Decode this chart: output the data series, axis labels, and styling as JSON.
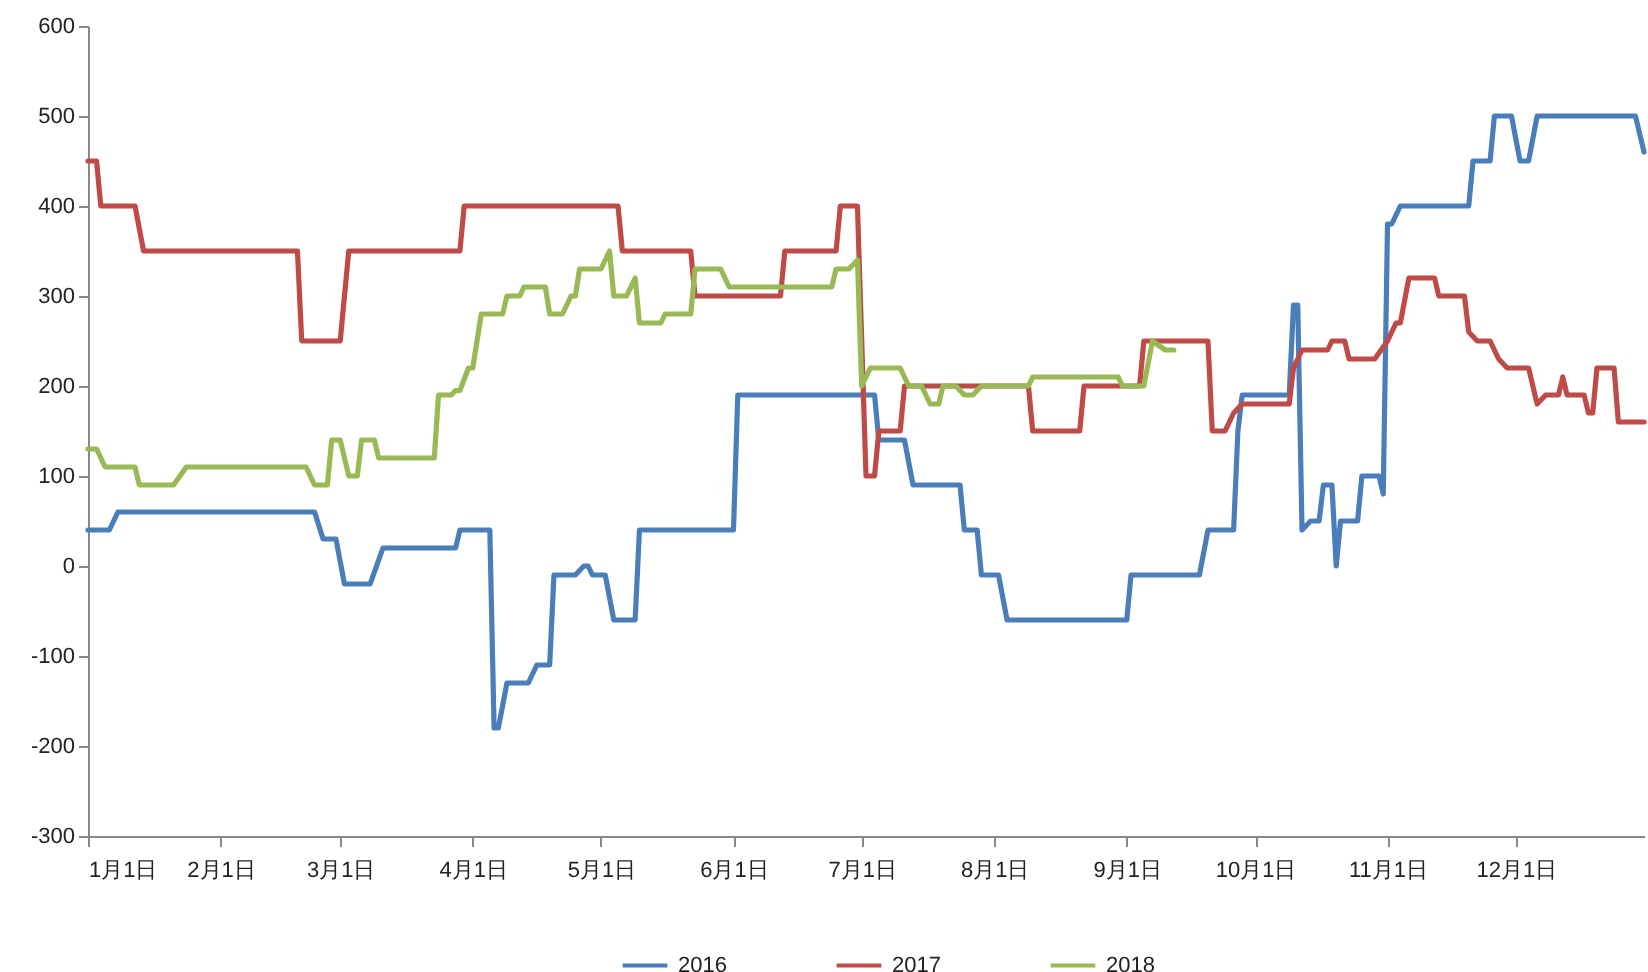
{
  "chart_data": {
    "type": "line",
    "legend": "bottom",
    "line_style": "solid",
    "marker": "none",
    "xlim": [
      "--01-01",
      "--12-31"
    ],
    "xticks": [
      {
        "value": "--01-01",
        "label": "1月1日"
      },
      {
        "value": "--02-01",
        "label": "2月1日"
      },
      {
        "value": "--03-01",
        "label": "3月1日"
      },
      {
        "value": "--04-01",
        "label": "4月1日"
      },
      {
        "value": "--05-01",
        "label": "5月1日"
      },
      {
        "value": "--06-01",
        "label": "6月1日"
      },
      {
        "value": "--07-01",
        "label": "7月1日"
      },
      {
        "value": "--08-01",
        "label": "8月1日"
      },
      {
        "value": "--09-01",
        "label": "9月1日"
      },
      {
        "value": "--10-01",
        "label": "10月1日"
      },
      {
        "value": "--11-01",
        "label": "11月1日"
      },
      {
        "value": "--12-01",
        "label": "12月1日"
      }
    ],
    "ylim": [
      -300,
      600
    ],
    "yticks": [
      -300,
      -200,
      -100,
      0,
      100,
      200,
      300,
      400,
      500,
      600
    ],
    "series": [
      {
        "name": "2016",
        "color": "#4a7ebb",
        "x": [
          "--01-01",
          "--01-06",
          "--01-08",
          "--02-23",
          "--02-25",
          "--02-28",
          "--03-02",
          "--03-08",
          "--03-11",
          "--03-28",
          "--03-29",
          "--04-05",
          "--04-06",
          "--04-07",
          "--04-09",
          "--04-14",
          "--04-16",
          "--04-19",
          "--04-20",
          "--04-25",
          "--04-27",
          "--04-28",
          "--04-29",
          "--05-02",
          "--05-04",
          "--05-09",
          "--05-10",
          "--06-01",
          "--06-02",
          "--07-04",
          "--07-05",
          "--07-11",
          "--07-13",
          "--07-24",
          "--07-25",
          "--07-28",
          "--07-29",
          "--08-02",
          "--08-04",
          "--09-01",
          "--09-02",
          "--09-18",
          "--09-20",
          "--09-26",
          "--09-27",
          "--09-28",
          "--10-09",
          "--10-10",
          "--10-11",
          "--10-12",
          "--10-14",
          "--10-16",
          "--10-17",
          "--10-19",
          "--10-20",
          "--10-21",
          "--10-25",
          "--10-26",
          "--10-30",
          "--10-31",
          "--11-01",
          "--11-02",
          "--11-04",
          "--11-20",
          "--11-21",
          "--11-25",
          "--11-26",
          "--11-30",
          "--12-02",
          "--12-04",
          "--12-06",
          "--12-29",
          "--12-31"
        ],
        "values": [
          40,
          40,
          60,
          60,
          30,
          30,
          -20,
          -20,
          20,
          20,
          40,
          40,
          -180,
          -180,
          -130,
          -130,
          -110,
          -110,
          -10,
          -10,
          0,
          0,
          -10,
          -10,
          -60,
          -60,
          40,
          40,
          190,
          190,
          140,
          140,
          90,
          90,
          40,
          40,
          -10,
          -10,
          -60,
          -60,
          -10,
          -10,
          40,
          40,
          150,
          190,
          190,
          290,
          290,
          40,
          50,
          50,
          90,
          90,
          0,
          50,
          50,
          100,
          100,
          80,
          380,
          380,
          400,
          400,
          450,
          450,
          500,
          500,
          450,
          450,
          500,
          500,
          460
        ]
      },
      {
        "name": "2017",
        "color": "#be4b48",
        "x": [
          "--01-01",
          "--01-03",
          "--01-04",
          "--01-12",
          "--01-14",
          "--02-19",
          "--02-20",
          "--03-01",
          "--03-03",
          "--03-29",
          "--03-30",
          "--05-05",
          "--05-06",
          "--05-22",
          "--05-23",
          "--06-12",
          "--06-13",
          "--06-25",
          "--06-26",
          "--06-30",
          "--07-02",
          "--07-04",
          "--07-05",
          "--07-10",
          "--07-11",
          "--08-09",
          "--08-10",
          "--08-21",
          "--08-22",
          "--09-04",
          "--09-05",
          "--09-20",
          "--09-21",
          "--09-24",
          "--09-26",
          "--09-28",
          "--10-09",
          "--10-10",
          "--10-12",
          "--10-18",
          "--10-19",
          "--10-22",
          "--10-23",
          "--10-29",
          "--11-01",
          "--11-03",
          "--11-04",
          "--11-06",
          "--11-12",
          "--11-13",
          "--11-19",
          "--11-20",
          "--11-22",
          "--11-25",
          "--11-27",
          "--11-29",
          "--12-04",
          "--12-05",
          "--12-06",
          "--12-08",
          "--12-11",
          "--12-12",
          "--12-13",
          "--12-17",
          "--12-18",
          "--12-19",
          "--12-20",
          "--12-24",
          "--12-25",
          "--12-31"
        ],
        "values": [
          450,
          450,
          400,
          400,
          350,
          350,
          250,
          250,
          350,
          350,
          400,
          400,
          350,
          350,
          300,
          300,
          350,
          350,
          400,
          400,
          100,
          100,
          150,
          150,
          200,
          200,
          150,
          150,
          200,
          200,
          250,
          250,
          150,
          150,
          170,
          180,
          180,
          220,
          240,
          240,
          250,
          250,
          230,
          230,
          250,
          270,
          270,
          320,
          320,
          300,
          300,
          260,
          250,
          250,
          230,
          220,
          220,
          200,
          180,
          190,
          190,
          210,
          190,
          190,
          170,
          170,
          220,
          220,
          160,
          160
        ]
      },
      {
        "name": "2018",
        "color": "#98b954",
        "x": [
          "--01-01",
          "--01-03",
          "--01-05",
          "--01-12",
          "--01-13",
          "--01-21",
          "--01-24",
          "--02-21",
          "--02-23",
          "--02-26",
          "--02-27",
          "--03-01",
          "--03-03",
          "--03-05",
          "--03-06",
          "--03-09",
          "--03-10",
          "--03-23",
          "--03-24",
          "--03-27",
          "--03-28",
          "--03-29",
          "--03-31",
          "--04-01",
          "--04-03",
          "--04-08",
          "--04-09",
          "--04-12",
          "--04-13",
          "--04-18",
          "--04-19",
          "--04-22",
          "--04-24",
          "--04-25",
          "--04-26",
          "--05-01",
          "--05-03",
          "--05-04",
          "--05-07",
          "--05-09",
          "--05-10",
          "--05-15",
          "--05-16",
          "--05-22",
          "--05-23",
          "--05-29",
          "--05-31",
          "--06-24",
          "--06-25",
          "--06-28",
          "--06-30",
          "--07-01",
          "--07-03",
          "--07-10",
          "--07-12",
          "--07-15",
          "--07-17",
          "--07-19",
          "--07-20",
          "--07-23",
          "--07-25",
          "--07-27",
          "--07-29",
          "--08-09",
          "--08-10",
          "--08-30",
          "--08-31",
          "--09-05",
          "--09-07",
          "--09-10",
          "--09-12"
        ],
        "values": [
          130,
          130,
          110,
          110,
          90,
          90,
          110,
          110,
          90,
          90,
          140,
          140,
          100,
          100,
          140,
          140,
          120,
          120,
          190,
          190,
          195,
          195,
          220,
          220,
          280,
          280,
          300,
          300,
          310,
          310,
          280,
          280,
          300,
          300,
          330,
          330,
          350,
          300,
          300,
          320,
          270,
          270,
          280,
          280,
          330,
          330,
          310,
          310,
          330,
          330,
          340,
          200,
          220,
          220,
          200,
          200,
          180,
          180,
          200,
          200,
          190,
          190,
          200,
          200,
          210,
          210,
          200,
          200,
          250,
          240,
          240
        ]
      }
    ]
  }
}
